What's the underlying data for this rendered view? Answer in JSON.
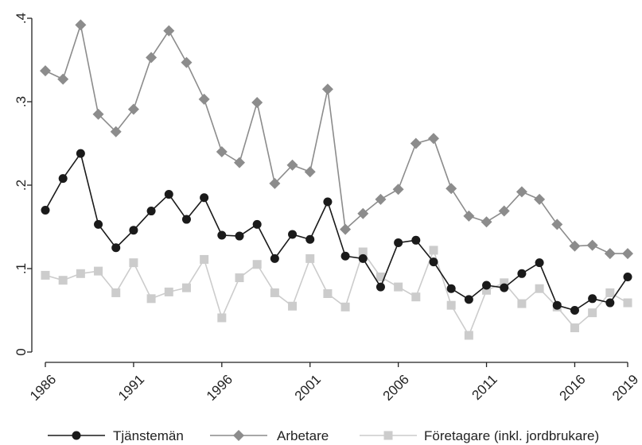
{
  "chart_data": {
    "type": "line",
    "x": [
      1986,
      1987,
      1988,
      1989,
      1990,
      1991,
      1992,
      1993,
      1994,
      1995,
      1996,
      1997,
      1998,
      1999,
      2000,
      2001,
      2002,
      2003,
      2004,
      2005,
      2006,
      2007,
      2008,
      2009,
      2010,
      2011,
      2012,
      2013,
      2014,
      2015,
      2016,
      2017,
      2018,
      2019
    ],
    "x_ticks": [
      1986,
      1991,
      1996,
      2001,
      2006,
      2011,
      2016,
      2019
    ],
    "y_ticks": [
      0,
      0.1,
      0.2,
      0.3,
      0.4
    ],
    "y_tick_labels": [
      "0",
      ".1",
      ".2",
      ".3",
      ".4"
    ],
    "xlim": [
      1986,
      2019
    ],
    "ylim": [
      0,
      0.4
    ],
    "grid": false,
    "legend_position": "bottom",
    "series": [
      {
        "name": "Tjänstemän",
        "color": "#1a1a1a",
        "marker": "circle",
        "values": [
          0.17,
          0.208,
          0.238,
          0.153,
          0.125,
          0.146,
          0.169,
          0.189,
          0.159,
          0.185,
          0.14,
          0.139,
          0.153,
          0.112,
          0.141,
          0.135,
          0.18,
          0.115,
          0.112,
          0.078,
          0.131,
          0.134,
          0.108,
          0.076,
          0.063,
          0.08,
          0.077,
          0.094,
          0.107,
          0.056,
          0.05,
          0.064,
          0.059,
          0.09
        ]
      },
      {
        "name": "Arbetare",
        "color": "#8c8c8c",
        "marker": "diamond",
        "values": [
          0.337,
          0.327,
          0.392,
          0.285,
          0.264,
          0.291,
          0.353,
          0.385,
          0.347,
          0.303,
          0.24,
          0.227,
          0.299,
          0.202,
          0.224,
          0.216,
          0.315,
          0.147,
          0.166,
          0.183,
          0.195,
          0.25,
          0.256,
          0.196,
          0.163,
          0.156,
          0.169,
          0.192,
          0.183,
          0.153,
          0.127,
          0.128,
          0.118,
          0.118
        ]
      },
      {
        "name": "Företagare (inkl. jordbrukare)",
        "color": "#cccccc",
        "marker": "square",
        "values": [
          0.092,
          0.086,
          0.094,
          0.097,
          0.071,
          0.107,
          0.064,
          0.072,
          0.077,
          0.111,
          0.041,
          0.089,
          0.105,
          0.071,
          0.055,
          0.112,
          0.07,
          0.054,
          0.12,
          0.09,
          0.078,
          0.066,
          0.122,
          0.056,
          0.02,
          0.074,
          0.083,
          0.058,
          0.076,
          0.054,
          0.029,
          0.047,
          0.071,
          0.059
        ]
      }
    ]
  }
}
